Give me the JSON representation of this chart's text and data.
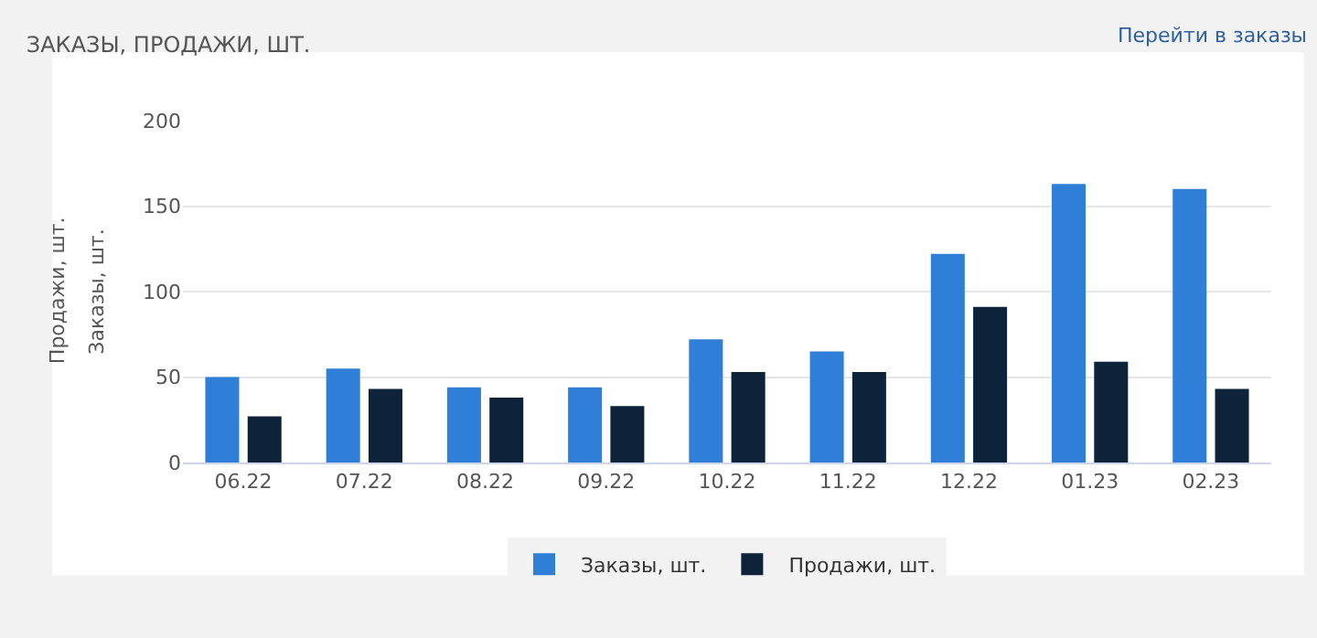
{
  "chart_data": {
    "type": "bar",
    "title": "ЗАКАЗЫ, ПРОДАЖИ, ШТ.",
    "ylabel": "Заказы, шт.",
    "annotations": [
      "Перейти в заказы",
      "Продажи, шт."
    ],
    "categories": [
      "06.22",
      "07.22",
      "08.22",
      "09.22",
      "10.22",
      "11.22",
      "12.22",
      "01.23",
      "02.23"
    ],
    "series": [
      {
        "name": "Заказы, шт.",
        "color": "#2f7ed8",
        "values": [
          50,
          55,
          44,
          44,
          72,
          65,
          122,
          163,
          160
        ]
      },
      {
        "name": "Продажи, шт.",
        "color": "#0d233a",
        "values": [
          27,
          43,
          38,
          33,
          53,
          53,
          91,
          59,
          43
        ]
      }
    ],
    "ylim": [
      0,
      200
    ],
    "yticks": [
      0,
      50,
      100,
      150,
      200
    ],
    "grid": "y",
    "legend": "bottom"
  }
}
